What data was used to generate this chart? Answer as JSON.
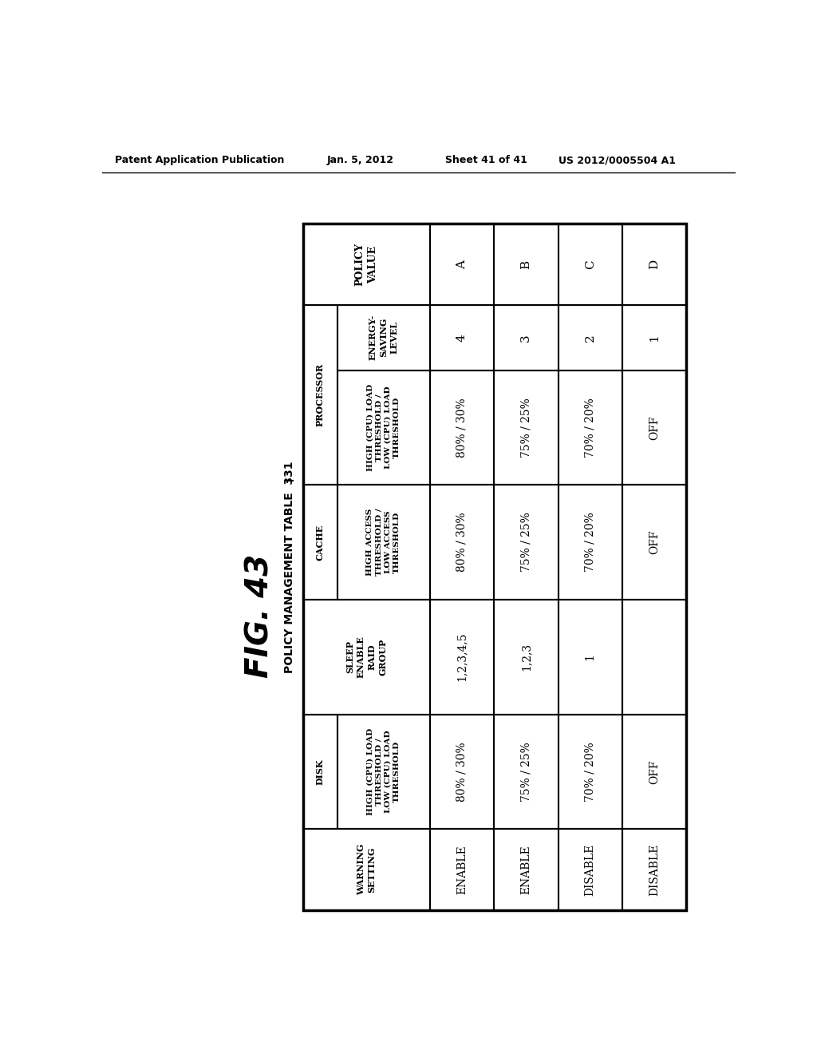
{
  "fig_label": "FIG. 43",
  "table_title": "POLICY MANAGEMENT TABLE  331",
  "header_line1": "Patent Application Publication",
  "header_line2": "Jan. 5, 2012",
  "header_line3": "Sheet 41 of 41",
  "header_line4": "US 2012/0005504 A1",
  "col_headers": [
    "POLICY\nVALUE",
    "ENERGY-\nSAVING\nLEVEL",
    "HIGH (CPU) LOAD\nTHRESHOLD /\nLOW (CPU) LOAD\nTHRESHOLD",
    "HIGH ACCESS\nTHRESHOLD /\nLOW ACCESS\nTHRESHOLD",
    "SLEEP\nENABLE\nRAID\nGROUP",
    "HIGH (CPU) LOAD\nTHRESHOLD /\nLOW (CPU) LOAD\nTHRESHOLD",
    "WARNING\nSETTING"
  ],
  "rows": [
    [
      "A",
      "4",
      "80% / 30%",
      "80% / 30%",
      "1,2,3,4,5",
      "80% / 30%",
      "ENABLE"
    ],
    [
      "B",
      "3",
      "75% / 25%",
      "75% / 25%",
      "1,2,3",
      "75% / 25%",
      "ENABLE"
    ],
    [
      "C",
      "2",
      "70% / 20%",
      "70% / 20%",
      "1",
      "70% / 20%",
      "DISABLE"
    ],
    [
      "D",
      "1",
      "OFF",
      "OFF",
      "",
      "OFF",
      "DISABLE"
    ]
  ],
  "bg_color": "#ffffff",
  "text_color": "#000000"
}
